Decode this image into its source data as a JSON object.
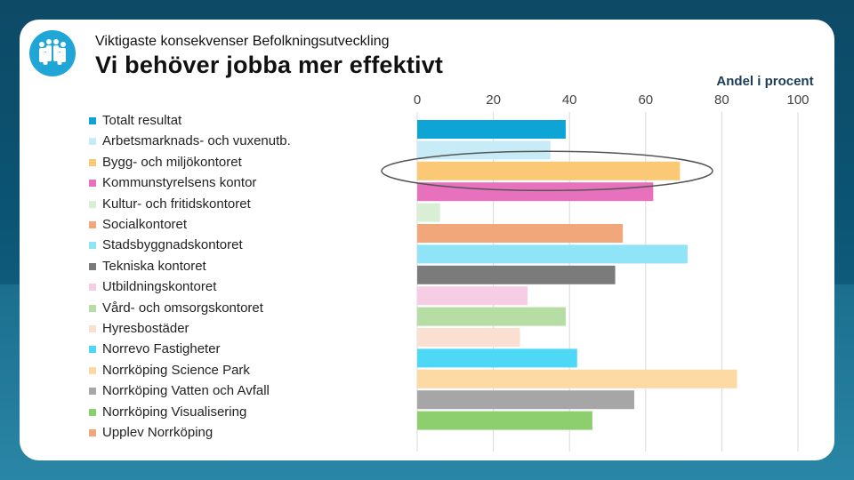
{
  "header": {
    "supertitle": "Viktigaste konsekvenser Befolkningsutveckling",
    "title": "Vi behöver jobba mer effektivt"
  },
  "logo": {
    "icon": "people-group-icon",
    "color": "#1fa6d6"
  },
  "chart_data": {
    "type": "bar",
    "orientation": "horizontal",
    "title": "Vi behöver jobba mer effektivt",
    "xlabel": "Andel i procent",
    "ylabel": "",
    "xlim": [
      0,
      100
    ],
    "ticks": [
      "0",
      "20",
      "40",
      "60",
      "80",
      "100"
    ],
    "grid": true,
    "legend_position": "left",
    "highlighted_category": "Bygg- och miljökontoret",
    "categories": [
      "Totalt resultat",
      "Arbetsmarknads- och vuxenutb.",
      "Bygg- och miljökontoret",
      "Kommunstyrelsens kontor",
      "Kultur- och fritidskontoret",
      "Socialkontoret",
      "Stadsbyggnadskontoret",
      "Tekniska kontoret",
      "Utbildningskontoret",
      "Vård- och omsorgskontoret",
      "Hyresbostäder",
      "Norrevo Fastigheter",
      "Norrköping Science Park",
      "Norrköping Vatten och Avfall",
      "Norrköping Visualisering",
      "Upplev Norrköping"
    ],
    "values": [
      39,
      35,
      69,
      62,
      6,
      54,
      71,
      52,
      29,
      39,
      27,
      42,
      84,
      57,
      46,
      null
    ],
    "colors": [
      "#0ea5d6",
      "#c8ecf7",
      "#fbc875",
      "#e771bd",
      "#d9efd5",
      "#f2a77a",
      "#8fe4f7",
      "#7b7b7b",
      "#f7cde6",
      "#b6dea4",
      "#fbe0d2",
      "#4dd8f5",
      "#fdd9a3",
      "#a6a6a6",
      "#8dcf6f",
      "#f2a77a"
    ]
  }
}
